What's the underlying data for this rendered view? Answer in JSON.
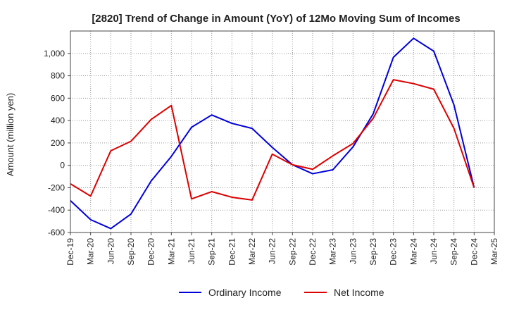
{
  "chart_data": {
    "type": "line",
    "title": "[2820]  Trend of Change in Amount (YoY) of 12Mo Moving Sum of Incomes",
    "xlabel": "",
    "ylabel": "Amount (million yen)",
    "categories": [
      "Dec-19",
      "Mar-20",
      "Jun-20",
      "Sep-20",
      "Dec-20",
      "Mar-21",
      "Jun-21",
      "Sep-21",
      "Dec-21",
      "Mar-22",
      "Jun-22",
      "Sep-22",
      "Dec-22",
      "Mar-23",
      "Jun-23",
      "Sep-23",
      "Dec-23",
      "Mar-24",
      "Jun-24",
      "Sep-24",
      "Dec-24",
      "Mar-25"
    ],
    "ylim": [
      -600,
      1200
    ],
    "yticks": [
      -600,
      -400,
      -200,
      0,
      200,
      400,
      600,
      800,
      1000
    ],
    "ytick_labels": [
      "-600",
      "-400",
      "-200",
      "0",
      "200",
      "400",
      "600",
      "800",
      "1,000"
    ],
    "grid": true,
    "legend_position": "bottom",
    "series": [
      {
        "name": "Ordinary Income",
        "color": "#0000dd",
        "values": [
          -315,
          -485,
          -565,
          -435,
          -140,
          80,
          340,
          450,
          375,
          330,
          160,
          5,
          -75,
          -40,
          165,
          460,
          965,
          1135,
          1020,
          540,
          -200,
          null
        ]
      },
      {
        "name": "Net Income",
        "color": "#dd0000",
        "values": [
          -165,
          -275,
          130,
          215,
          410,
          535,
          -300,
          -235,
          -285,
          -310,
          100,
          5,
          -35,
          85,
          195,
          420,
          765,
          730,
          680,
          330,
          -200,
          null
        ]
      }
    ]
  }
}
